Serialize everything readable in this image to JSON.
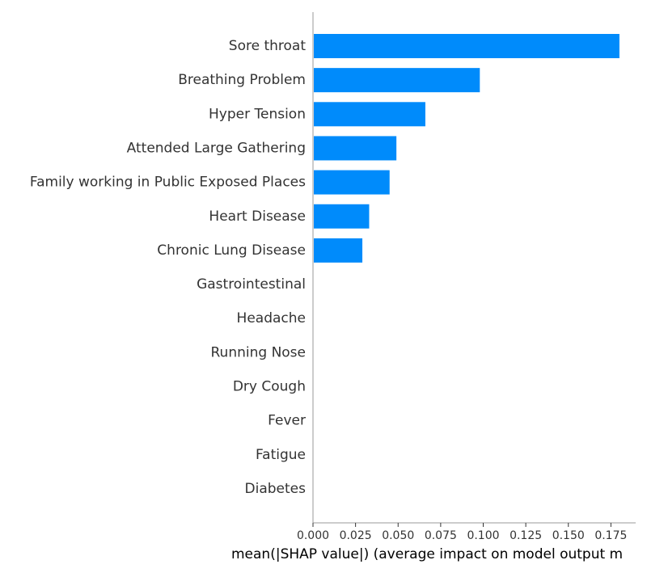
{
  "chart_data": {
    "type": "bar",
    "orientation": "horizontal",
    "categories": [
      "Sore throat",
      "Breathing Problem",
      "Hyper Tension",
      "Attended Large Gathering",
      "Family working in Public Exposed Places",
      "Heart Disease",
      "Chronic Lung Disease",
      "Gastrointestinal ",
      "Headache",
      "Running Nose",
      "Dry Cough",
      "Fever",
      "Fatigue ",
      "Diabetes"
    ],
    "values": [
      0.18,
      0.098,
      0.066,
      0.049,
      0.045,
      0.033,
      0.029,
      0,
      0,
      0,
      0,
      0,
      0,
      0
    ],
    "xlabel": "mean(|SHAP value|) (average impact on model output m",
    "ylabel": "",
    "title": "",
    "xlim": [
      0,
      0.19
    ],
    "xticks": [
      0.0,
      0.025,
      0.05,
      0.075,
      0.1,
      0.125,
      0.15,
      0.175
    ],
    "xtick_labels": [
      "0.000",
      "0.025",
      "0.050",
      "0.075",
      "0.100",
      "0.125",
      "0.150",
      "0.175"
    ],
    "bar_color": "#008bfb",
    "grid": false,
    "legend": false
  }
}
